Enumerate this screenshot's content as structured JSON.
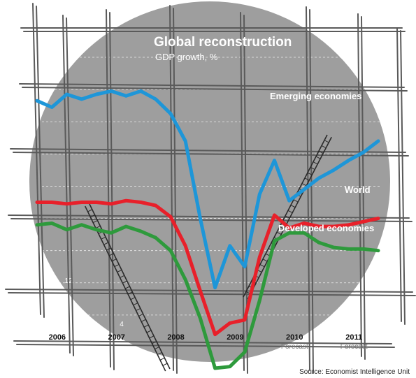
{
  "chart_data": {
    "type": "line",
    "title": "Global reconstruction",
    "subtitle": "GDP growth, %",
    "source": "Source: Economist Intelligence Unit",
    "forecast_label": "Forecast",
    "ylim": [
      -6,
      12
    ],
    "yticks": [
      -6,
      -4,
      -2,
      0,
      2,
      4,
      6,
      8,
      10,
      12
    ],
    "ytick_labels_shown": [
      12,
      4
    ],
    "years": [
      "2006",
      "2007",
      "2008",
      "2009",
      "2010",
      "2011"
    ],
    "forecast_years": [
      "2010",
      "2011"
    ],
    "x": [
      2006.0,
      2006.25,
      2006.5,
      2006.75,
      2007.0,
      2007.25,
      2007.5,
      2007.75,
      2008.0,
      2008.25,
      2008.5,
      2008.75,
      2009.0,
      2009.25,
      2009.5,
      2009.75,
      2010.0,
      2010.25,
      2010.5,
      2010.75,
      2011.0,
      2011.25,
      2011.5,
      2011.75
    ],
    "series": [
      {
        "name": "Emerging economies",
        "color": "#1e96d8",
        "values": [
          9.3,
          8.9,
          9.7,
          9.4,
          9.7,
          9.9,
          9.6,
          9.9,
          9.4,
          8.5,
          6.8,
          2.0,
          -2.3,
          0.3,
          -1.0,
          3.5,
          5.6,
          3.1,
          3.8,
          4.5,
          5.0,
          5.6,
          6.1,
          6.8
        ]
      },
      {
        "name": "World",
        "color": "#e8202a",
        "values": [
          3.0,
          3.0,
          2.9,
          3.0,
          3.0,
          2.9,
          3.1,
          3.0,
          2.8,
          2.1,
          0.3,
          -2.5,
          -5.2,
          -4.5,
          -4.3,
          -0.4,
          2.2,
          1.4,
          1.7,
          1.5,
          1.5,
          1.6,
          1.8,
          2.0
        ]
      },
      {
        "name": "Developed economies",
        "color": "#2e9a3c",
        "values": [
          1.6,
          1.7,
          1.3,
          1.6,
          1.3,
          1.1,
          1.5,
          1.2,
          0.8,
          0.0,
          -1.8,
          -4.2,
          -7.3,
          -7.2,
          -6.3,
          -3.1,
          0.6,
          1.1,
          1.1,
          0.5,
          0.2,
          0.1,
          0.1,
          0.0
        ]
      }
    ]
  }
}
